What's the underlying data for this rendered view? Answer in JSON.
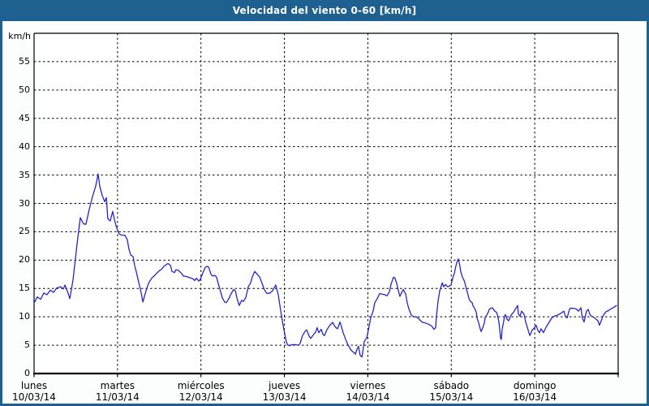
{
  "window": {
    "title": "Velocidad del viento 0-60 [km/h]"
  },
  "colors": {
    "frame": "#1e6191",
    "titlebar_text": "#ffffff",
    "line": "#2424cb",
    "grid": "#000000",
    "plot_background": "#ffffff"
  },
  "chart_data": {
    "type": "line",
    "title": "Velocidad del viento 0-60 [km/h]",
    "ylabel": "km/h",
    "ylim": [
      0,
      60
    ],
    "y_tick_step": 5,
    "y_tick_labels": [
      "0",
      "5",
      "10",
      "15",
      "20",
      "25",
      "30",
      "35",
      "40",
      "45",
      "50",
      "55"
    ],
    "xlim_hours": [
      0,
      168
    ],
    "grid": "dashed",
    "legend": "none",
    "x_day_labels": [
      {
        "name": "lunes",
        "date": "10/03/14"
      },
      {
        "name": "martes",
        "date": "11/03/14"
      },
      {
        "name": "miércoles",
        "date": "12/03/14"
      },
      {
        "name": "jueves",
        "date": "13/03/14"
      },
      {
        "name": "viernes",
        "date": "14/03/14"
      },
      {
        "name": "sábado",
        "date": "15/03/14"
      },
      {
        "name": "domingo",
        "date": "16/03/14"
      }
    ],
    "series": [
      {
        "name": "velocidad_viento_kmh",
        "points": [
          [
            0,
            12.4
          ],
          [
            0.9,
            13.5
          ],
          [
            1.9,
            13.1
          ],
          [
            2.8,
            14.2
          ],
          [
            3.7,
            13.9
          ],
          [
            4.7,
            14.7
          ],
          [
            5.6,
            14.3
          ],
          [
            6.5,
            15.1
          ],
          [
            7.7,
            15.3
          ],
          [
            8.4,
            14.9
          ],
          [
            8.9,
            15.6
          ],
          [
            9.6,
            14.5
          ],
          [
            10.3,
            13.2
          ],
          [
            11.2,
            16.5
          ],
          [
            12.4,
            23.0
          ],
          [
            13.3,
            27.5
          ],
          [
            14.2,
            26.4
          ],
          [
            14.9,
            26.3
          ],
          [
            15.9,
            29.0
          ],
          [
            16.8,
            31.2
          ],
          [
            17.7,
            33.0
          ],
          [
            18.4,
            35.2
          ],
          [
            18.9,
            33.0
          ],
          [
            19.6,
            31.4
          ],
          [
            20.3,
            30.3
          ],
          [
            20.8,
            31.0
          ],
          [
            21.2,
            27.3
          ],
          [
            21.9,
            26.9
          ],
          [
            22.6,
            28.6
          ],
          [
            23.1,
            27.2
          ],
          [
            23.6,
            26.0
          ],
          [
            24.0,
            25.3
          ],
          [
            24.5,
            24.6
          ],
          [
            25.2,
            24.4
          ],
          [
            26.1,
            24.4
          ],
          [
            26.8,
            23.6
          ],
          [
            27.3,
            21.9
          ],
          [
            27.8,
            20.9
          ],
          [
            28.5,
            20.6
          ],
          [
            28.9,
            19.1
          ],
          [
            29.5,
            17.7
          ],
          [
            30.0,
            16.3
          ],
          [
            30.6,
            14.8
          ],
          [
            31.0,
            13.6
          ],
          [
            31.3,
            12.6
          ],
          [
            31.7,
            13.5
          ],
          [
            32.2,
            14.6
          ],
          [
            32.7,
            15.5
          ],
          [
            33.0,
            16.0
          ],
          [
            33.8,
            16.8
          ],
          [
            34.5,
            17.2
          ],
          [
            35.3,
            17.7
          ],
          [
            36.2,
            18.2
          ],
          [
            36.7,
            18.4
          ],
          [
            37.3,
            18.9
          ],
          [
            38.5,
            19.4
          ],
          [
            39.2,
            19.1
          ],
          [
            39.7,
            18.0
          ],
          [
            40.4,
            17.8
          ],
          [
            40.8,
            18.3
          ],
          [
            41.5,
            18.2
          ],
          [
            42.5,
            17.6
          ],
          [
            42.9,
            17.2
          ],
          [
            43.9,
            17.1
          ],
          [
            44.8,
            16.9
          ],
          [
            45.7,
            16.7
          ],
          [
            46.2,
            16.4
          ],
          [
            46.7,
            16.8
          ],
          [
            47.4,
            16.3
          ],
          [
            47.8,
            16.6
          ],
          [
            48.5,
            17.7
          ],
          [
            49.2,
            18.7
          ],
          [
            49.7,
            18.9
          ],
          [
            50.2,
            18.8
          ],
          [
            50.9,
            17.5
          ],
          [
            51.3,
            17.2
          ],
          [
            52.0,
            17.3
          ],
          [
            52.5,
            17.0
          ],
          [
            53.0,
            15.8
          ],
          [
            53.4,
            15.0
          ],
          [
            54.1,
            13.4
          ],
          [
            54.8,
            12.6
          ],
          [
            55.3,
            12.5
          ],
          [
            56.0,
            13.2
          ],
          [
            56.7,
            14.1
          ],
          [
            57.4,
            14.8
          ],
          [
            57.9,
            14.6
          ],
          [
            58.3,
            13.4
          ],
          [
            59.0,
            12.0
          ],
          [
            59.7,
            12.9
          ],
          [
            60.2,
            12.7
          ],
          [
            60.9,
            13.4
          ],
          [
            61.6,
            15.3
          ],
          [
            62.3,
            16.0
          ],
          [
            62.8,
            17.1
          ],
          [
            63.5,
            18.0
          ],
          [
            64.2,
            17.5
          ],
          [
            64.9,
            17.0
          ],
          [
            65.6,
            15.9
          ],
          [
            66.3,
            14.7
          ],
          [
            67.0,
            14.1
          ],
          [
            67.9,
            14.2
          ],
          [
            68.6,
            14.6
          ],
          [
            69.5,
            15.6
          ],
          [
            70.2,
            14.0
          ],
          [
            70.7,
            12.0
          ],
          [
            71.2,
            10.1
          ],
          [
            71.6,
            8.6
          ],
          [
            72.1,
            7.0
          ],
          [
            72.6,
            5.5
          ],
          [
            73.0,
            5.0
          ],
          [
            73.5,
            4.9
          ],
          [
            74.2,
            5.1
          ],
          [
            75.1,
            5.1
          ],
          [
            76.1,
            5.0
          ],
          [
            76.5,
            5.3
          ],
          [
            77.2,
            6.7
          ],
          [
            77.9,
            7.4
          ],
          [
            78.4,
            7.7
          ],
          [
            79.1,
            6.6
          ],
          [
            79.6,
            6.2
          ],
          [
            80.3,
            6.8
          ],
          [
            81.0,
            7.3
          ],
          [
            81.4,
            8.1
          ],
          [
            81.9,
            7.2
          ],
          [
            82.6,
            7.8
          ],
          [
            83.1,
            6.9
          ],
          [
            83.5,
            6.7
          ],
          [
            84.2,
            7.7
          ],
          [
            85.2,
            8.6
          ],
          [
            85.9,
            9.0
          ],
          [
            86.3,
            8.5
          ],
          [
            86.8,
            8.1
          ],
          [
            87.3,
            7.9
          ],
          [
            88.0,
            9.1
          ],
          [
            88.9,
            7.2
          ],
          [
            89.8,
            5.7
          ],
          [
            90.5,
            4.8
          ],
          [
            91.2,
            4.1
          ],
          [
            92.2,
            3.6
          ],
          [
            92.4,
            3.4
          ],
          [
            92.9,
            4.3
          ],
          [
            93.3,
            4.8
          ],
          [
            93.8,
            3.2
          ],
          [
            94.3,
            2.9
          ],
          [
            95.0,
            5.7
          ],
          [
            95.7,
            6.3
          ],
          [
            96.4,
            8.4
          ],
          [
            96.8,
            9.8
          ],
          [
            97.5,
            11.0
          ],
          [
            98.0,
            12.5
          ],
          [
            98.7,
            13.2
          ],
          [
            99.4,
            14.1
          ],
          [
            100.1,
            14.0
          ],
          [
            100.8,
            13.9
          ],
          [
            101.5,
            13.7
          ],
          [
            102.2,
            14.4
          ],
          [
            102.7,
            15.8
          ],
          [
            103.4,
            17.0
          ],
          [
            103.8,
            16.8
          ],
          [
            104.3,
            15.9
          ],
          [
            104.8,
            14.6
          ],
          [
            105.2,
            13.6
          ],
          [
            105.9,
            14.5
          ],
          [
            106.2,
            14.8
          ],
          [
            106.9,
            14.0
          ],
          [
            107.3,
            12.5
          ],
          [
            107.8,
            11.4
          ],
          [
            108.5,
            10.3
          ],
          [
            109.2,
            10.0
          ],
          [
            109.9,
            10.0
          ],
          [
            110.6,
            9.7
          ],
          [
            111.5,
            9.1
          ],
          [
            112.5,
            8.9
          ],
          [
            113.4,
            8.7
          ],
          [
            114.3,
            8.4
          ],
          [
            115.0,
            7.8
          ],
          [
            115.5,
            8.1
          ],
          [
            115.7,
            10.0
          ],
          [
            116.2,
            12.8
          ],
          [
            116.7,
            14.6
          ],
          [
            117.4,
            16.0
          ],
          [
            117.8,
            15.3
          ],
          [
            118.3,
            15.7
          ],
          [
            119.0,
            15.3
          ],
          [
            119.9,
            15.6
          ],
          [
            120.4,
            16.8
          ],
          [
            120.9,
            17.7
          ],
          [
            121.3,
            18.9
          ],
          [
            121.6,
            19.6
          ],
          [
            122.0,
            20.2
          ],
          [
            122.5,
            18.9
          ],
          [
            122.7,
            18.0
          ],
          [
            123.2,
            17.0
          ],
          [
            123.7,
            16.4
          ],
          [
            123.9,
            16.0
          ],
          [
            124.4,
            14.8
          ],
          [
            124.8,
            13.9
          ],
          [
            125.1,
            13.2
          ],
          [
            125.5,
            12.7
          ],
          [
            126.0,
            12.5
          ],
          [
            126.2,
            12.0
          ],
          [
            126.7,
            11.5
          ],
          [
            127.2,
            10.8
          ],
          [
            127.4,
            9.8
          ],
          [
            127.9,
            8.9
          ],
          [
            128.3,
            7.9
          ],
          [
            128.6,
            7.4
          ],
          [
            129.0,
            8.0
          ],
          [
            129.5,
            8.9
          ],
          [
            129.7,
            9.8
          ],
          [
            130.2,
            10.3
          ],
          [
            130.7,
            10.9
          ],
          [
            130.9,
            11.3
          ],
          [
            131.4,
            11.5
          ],
          [
            131.8,
            11.6
          ],
          [
            132.5,
            11.0
          ],
          [
            133.0,
            10.8
          ],
          [
            133.2,
            10.5
          ],
          [
            133.7,
            9.1
          ],
          [
            134.2,
            6.2
          ],
          [
            134.4,
            6.0
          ],
          [
            134.6,
            7.7
          ],
          [
            135.1,
            9.3
          ],
          [
            135.3,
            10.1
          ],
          [
            135.6,
            10.4
          ],
          [
            136.0,
            9.6
          ],
          [
            136.5,
            9.3
          ],
          [
            137.2,
            10.3
          ],
          [
            137.9,
            10.8
          ],
          [
            138.4,
            11.3
          ],
          [
            139.1,
            12.0
          ],
          [
            139.3,
            10.5
          ],
          [
            139.8,
            10.1
          ],
          [
            140.2,
            11.0
          ],
          [
            140.9,
            10.5
          ],
          [
            141.4,
            9.1
          ],
          [
            141.9,
            8.1
          ],
          [
            142.3,
            7.2
          ],
          [
            142.6,
            6.7
          ],
          [
            143.3,
            7.7
          ],
          [
            143.7,
            7.9
          ],
          [
            144.4,
            8.5
          ],
          [
            144.9,
            7.6
          ],
          [
            145.4,
            7.2
          ],
          [
            145.8,
            7.9
          ],
          [
            146.5,
            7.2
          ],
          [
            147.2,
            8.1
          ],
          [
            148.2,
            9.1
          ],
          [
            148.9,
            9.8
          ],
          [
            149.6,
            10.1
          ],
          [
            150.5,
            10.3
          ],
          [
            151.2,
            10.5
          ],
          [
            151.9,
            10.8
          ],
          [
            152.4,
            11.0
          ],
          [
            152.8,
            10.1
          ],
          [
            153.3,
            9.8
          ],
          [
            154.0,
            11.3
          ],
          [
            154.2,
            11.5
          ],
          [
            155.2,
            11.5
          ],
          [
            155.9,
            11.4
          ],
          [
            156.6,
            11.0
          ],
          [
            157.3,
            11.6
          ],
          [
            157.7,
            9.8
          ],
          [
            158.2,
            9.1
          ],
          [
            158.7,
            10.5
          ],
          [
            158.9,
            11.0
          ],
          [
            159.4,
            11.3
          ],
          [
            159.8,
            10.5
          ],
          [
            160.1,
            10.2
          ],
          [
            161.0,
            9.9
          ],
          [
            161.2,
            9.8
          ],
          [
            162.2,
            9.3
          ],
          [
            162.6,
            8.5
          ],
          [
            163.3,
            9.6
          ],
          [
            163.6,
            10.1
          ],
          [
            164.0,
            10.5
          ],
          [
            164.5,
            10.9
          ],
          [
            165.2,
            11.1
          ],
          [
            165.9,
            11.4
          ],
          [
            166.8,
            11.7
          ],
          [
            167.5,
            12.0
          ]
        ]
      }
    ]
  }
}
